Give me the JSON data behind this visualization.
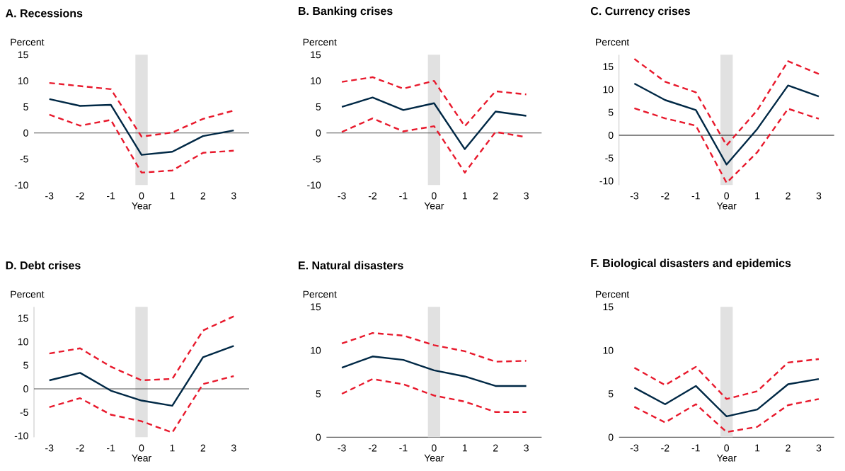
{
  "chart_data": [
    {
      "type": "line",
      "title": "A. Recessions",
      "ylabel": "Percent",
      "xlabel": "Year",
      "x": [
        -3,
        -2,
        -1,
        0,
        1,
        2,
        3
      ],
      "xlim": [
        -3.5,
        3.5
      ],
      "ylim": [
        -10,
        15
      ],
      "xticks": [
        -3,
        -2,
        -1,
        0,
        1,
        2,
        3
      ],
      "yticks": [
        -10,
        -5,
        0,
        5,
        10,
        15
      ],
      "series": [
        {
          "color": "#e8192c",
          "line_style": "dashed",
          "values": [
            9.6,
            9.0,
            8.4,
            -0.7,
            0.1,
            2.7,
            4.3
          ]
        },
        {
          "color": "#e8192c",
          "line_style": "dashed",
          "values": [
            3.5,
            1.4,
            2.5,
            -7.6,
            -7.2,
            -3.8,
            -3.4
          ]
        },
        {
          "color": "#002845",
          "line_style": "solid",
          "values": [
            6.5,
            5.2,
            5.4,
            -4.2,
            -3.6,
            -0.6,
            0.5
          ]
        }
      ],
      "bands": [
        {
          "axis": "x",
          "from": -0.2,
          "to": 0.2,
          "color": "#e1e1e1"
        }
      ],
      "ref_lines": [
        {
          "axis": "y",
          "value": 0,
          "color": "#555555"
        }
      ]
    },
    {
      "type": "line",
      "title": "B. Banking crises",
      "ylabel": "Percent",
      "xlabel": "Year",
      "x": [
        -3,
        -2,
        -1,
        0,
        1,
        2,
        3
      ],
      "xlim": [
        -3.5,
        3.5
      ],
      "ylim": [
        -10,
        15
      ],
      "xticks": [
        -3,
        -2,
        -1,
        0,
        1,
        2,
        3
      ],
      "yticks": [
        -10,
        -5,
        0,
        5,
        10,
        15
      ],
      "series": [
        {
          "color": "#e8192c",
          "line_style": "dashed",
          "values": [
            9.8,
            10.7,
            8.5,
            10.0,
            1.3,
            8.0,
            7.4
          ]
        },
        {
          "color": "#e8192c",
          "line_style": "dashed",
          "values": [
            0.2,
            2.8,
            0.3,
            1.3,
            -7.6,
            0.2,
            -0.8
          ]
        },
        {
          "color": "#002845",
          "line_style": "solid",
          "values": [
            5.0,
            6.8,
            4.4,
            5.7,
            -3.1,
            4.1,
            3.3
          ]
        }
      ],
      "bands": [
        {
          "axis": "x",
          "from": -0.2,
          "to": 0.2,
          "color": "#e1e1e1"
        }
      ],
      "ref_lines": [
        {
          "axis": "y",
          "value": 0,
          "color": "#555555"
        }
      ]
    },
    {
      "type": "line",
      "title": "C. Currency crises",
      "ylabel": "Percent",
      "xlabel": "Year",
      "x": [
        -3,
        -2,
        -1,
        0,
        1,
        2,
        3
      ],
      "xlim": [
        -3.5,
        3.5
      ],
      "ylim": [
        -10.9,
        17.6
      ],
      "xticks": [
        -3,
        -2,
        -1,
        0,
        1,
        2,
        3
      ],
      "yticks": [
        -10,
        -5,
        0,
        5,
        10,
        15
      ],
      "series": [
        {
          "color": "#e8192c",
          "line_style": "dashed",
          "values": [
            16.7,
            11.7,
            9.4,
            -2.2,
            5.5,
            16.2,
            13.4
          ]
        },
        {
          "color": "#e8192c",
          "line_style": "dashed",
          "values": [
            5.9,
            3.7,
            2.1,
            -10.4,
            -3.7,
            5.8,
            3.6
          ]
        },
        {
          "color": "#002845",
          "line_style": "solid",
          "values": [
            11.3,
            7.7,
            5.5,
            -6.4,
            1.4,
            10.9,
            8.5
          ]
        }
      ],
      "bands": [
        {
          "axis": "x",
          "from": -0.2,
          "to": 0.2,
          "color": "#e1e1e1"
        }
      ],
      "ref_lines": [
        {
          "axis": "y",
          "value": 0,
          "color": "#111111"
        }
      ]
    },
    {
      "type": "line",
      "title": "D. Debt crises",
      "ylabel": "Percent",
      "xlabel": "Year",
      "x": [
        -3,
        -2,
        -1,
        0,
        1,
        2,
        3
      ],
      "xlim": [
        -3.5,
        3.5
      ],
      "ylim": [
        -10.3,
        17.4
      ],
      "xticks": [
        -3,
        -2,
        -1,
        0,
        1,
        2,
        3
      ],
      "yticks": [
        -10,
        -5,
        0,
        5,
        10,
        15
      ],
      "series": [
        {
          "color": "#e8192c",
          "line_style": "dashed",
          "values": [
            7.5,
            8.6,
            4.7,
            1.8,
            2.1,
            12.4,
            15.4
          ]
        },
        {
          "color": "#e8192c",
          "line_style": "dashed",
          "values": [
            -3.9,
            -2.0,
            -5.5,
            -6.9,
            -9.3,
            1.0,
            2.7
          ]
        },
        {
          "color": "#002845",
          "line_style": "solid",
          "values": [
            1.8,
            3.4,
            -0.4,
            -2.5,
            -3.6,
            6.7,
            9.1
          ]
        }
      ],
      "bands": [
        {
          "axis": "x",
          "from": -0.2,
          "to": 0.2,
          "color": "#e1e1e1"
        }
      ],
      "ref_lines": [
        {
          "axis": "y",
          "value": 0,
          "color": "#555555"
        }
      ]
    },
    {
      "type": "line",
      "title": "E. Natural disasters",
      "ylabel": "Percent",
      "xlabel": "Year",
      "x": [
        -3,
        -2,
        -1,
        0,
        1,
        2,
        3
      ],
      "xlim": [
        -3.5,
        3.5
      ],
      "ylim": [
        0,
        15
      ],
      "xticks": [
        -3,
        -2,
        -1,
        0,
        1,
        2,
        3
      ],
      "yticks": [
        0,
        5,
        10,
        15
      ],
      "series": [
        {
          "color": "#e8192c",
          "line_style": "dashed",
          "values": [
            10.8,
            12.0,
            11.7,
            10.6,
            9.9,
            8.7,
            8.8
          ]
        },
        {
          "color": "#e8192c",
          "line_style": "dashed",
          "values": [
            5.0,
            6.7,
            6.1,
            4.8,
            4.1,
            2.9,
            2.9
          ]
        },
        {
          "color": "#002845",
          "line_style": "solid",
          "values": [
            8.0,
            9.3,
            8.9,
            7.7,
            7.0,
            5.9,
            5.9
          ]
        }
      ],
      "bands": [
        {
          "axis": "x",
          "from": -0.2,
          "to": 0.2,
          "color": "#e1e1e1"
        }
      ]
    },
    {
      "type": "line",
      "title": "F. Biological disasters and epidemics",
      "ylabel": "Percent",
      "xlabel": "Year",
      "x": [
        -3,
        -2,
        -1,
        0,
        1,
        2,
        3
      ],
      "xlim": [
        -3.5,
        3.5
      ],
      "ylim": [
        0,
        15
      ],
      "xticks": [
        -3,
        -2,
        -1,
        0,
        1,
        2,
        3
      ],
      "yticks": [
        0,
        5,
        10,
        15
      ],
      "series": [
        {
          "color": "#e8192c",
          "line_style": "dashed",
          "values": [
            8.0,
            6.0,
            8.1,
            4.4,
            5.3,
            8.6,
            9.0
          ]
        },
        {
          "color": "#e8192c",
          "line_style": "dashed",
          "values": [
            3.5,
            1.7,
            3.8,
            0.6,
            1.2,
            3.7,
            4.4
          ]
        },
        {
          "color": "#002845",
          "line_style": "solid",
          "values": [
            5.7,
            3.8,
            5.9,
            2.4,
            3.2,
            6.1,
            6.7
          ]
        }
      ],
      "bands": [
        {
          "axis": "x",
          "from": -0.2,
          "to": 0.2,
          "color": "#e1e1e1"
        }
      ]
    }
  ]
}
